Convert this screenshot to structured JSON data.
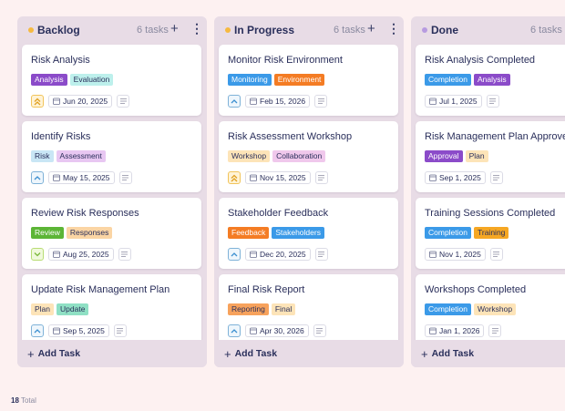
{
  "columns": [
    {
      "title": "Backlog",
      "count": "6 tasks",
      "dot_color": "#f6b940",
      "add_label": "Add Task",
      "cards": [
        {
          "title": "Risk Analysis",
          "tags": [
            {
              "label": "Analysis",
              "bg": "#8b4bc9",
              "fg": "#ffffff"
            },
            {
              "label": "Evaluation",
              "bg": "#bdf0ec",
              "fg": "#2a2f5b"
            }
          ],
          "priority": "high",
          "priority_icon": "double-chevron-up-icon",
          "date": "Jun 20, 2025"
        },
        {
          "title": "Identify Risks",
          "tags": [
            {
              "label": "Risk",
              "bg": "#c9e6f5",
              "fg": "#2a2f5b"
            },
            {
              "label": "Assessment",
              "bg": "#e8c7f2",
              "fg": "#2a2f5b"
            }
          ],
          "priority": "medium",
          "priority_icon": "chevron-up-icon",
          "date": "May 15, 2025"
        },
        {
          "title": "Review Risk Responses",
          "tags": [
            {
              "label": "Review",
              "bg": "#5cb536",
              "fg": "#ffffff"
            },
            {
              "label": "Responses",
              "bg": "#fbd5a4",
              "fg": "#2a2f5b"
            }
          ],
          "priority": "low",
          "priority_icon": "chevron-down-icon",
          "date": "Aug 25, 2025"
        },
        {
          "title": "Update Risk Management Plan",
          "tags": [
            {
              "label": "Plan",
              "bg": "#fde4b8",
              "fg": "#2a2f5b"
            },
            {
              "label": "Update",
              "bg": "#8fe0c4",
              "fg": "#2a2f5b"
            }
          ],
          "priority": "medium",
          "priority_icon": "chevron-up-icon",
          "date": "Sep 5, 2025"
        }
      ]
    },
    {
      "title": "In Progress",
      "count": "6 tasks",
      "dot_color": "#f6b940",
      "add_label": "Add Task",
      "cards": [
        {
          "title": "Monitor Risk Environment",
          "tags": [
            {
              "label": "Monitoring",
              "bg": "#3b9ae8",
              "fg": "#ffffff"
            },
            {
              "label": "Environment",
              "bg": "#f47c24",
              "fg": "#ffffff"
            }
          ],
          "priority": "medium",
          "priority_icon": "chevron-up-icon",
          "date": "Feb 15, 2026"
        },
        {
          "title": "Risk Assessment Workshop",
          "tags": [
            {
              "label": "Workshop",
              "bg": "#fde4b8",
              "fg": "#2a2f5b"
            },
            {
              "label": "Collaboration",
              "bg": "#f0c8ec",
              "fg": "#2a2f5b"
            }
          ],
          "priority": "high",
          "priority_icon": "double-chevron-up-icon",
          "date": "Nov 15, 2025"
        },
        {
          "title": "Stakeholder Feedback",
          "tags": [
            {
              "label": "Feedback",
              "bg": "#f47c24",
              "fg": "#ffffff"
            },
            {
              "label": "Stakeholders",
              "bg": "#3b9ae8",
              "fg": "#ffffff"
            }
          ],
          "priority": "medium",
          "priority_icon": "chevron-up-icon",
          "date": "Dec 20, 2025"
        },
        {
          "title": "Final Risk Report",
          "tags": [
            {
              "label": "Reporting",
              "bg": "#f7a25c",
              "fg": "#2a2f5b"
            },
            {
              "label": "Final",
              "bg": "#fde4b8",
              "fg": "#2a2f5b"
            }
          ],
          "priority": "medium",
          "priority_icon": "chevron-up-icon",
          "date": "Apr 30, 2026"
        }
      ]
    },
    {
      "title": "Done",
      "count": "6 tasks",
      "dot_color": "#b79be0",
      "add_label": "Add Task",
      "cards": [
        {
          "title": "Risk Analysis Completed",
          "tags": [
            {
              "label": "Completion",
              "bg": "#3b9ae8",
              "fg": "#ffffff"
            },
            {
              "label": "Analysis",
              "bg": "#8b4bc9",
              "fg": "#ffffff"
            }
          ],
          "priority": "none",
          "priority_icon": "",
          "date": "Jul 1, 2025"
        },
        {
          "title": "Risk Management Plan Approved",
          "tags": [
            {
              "label": "Approval",
              "bg": "#8b4bc9",
              "fg": "#ffffff"
            },
            {
              "label": "Plan",
              "bg": "#fde4b8",
              "fg": "#2a2f5b"
            }
          ],
          "priority": "none",
          "priority_icon": "",
          "date": "Sep 1, 2025"
        },
        {
          "title": "Training Sessions Completed",
          "tags": [
            {
              "label": "Completion",
              "bg": "#3b9ae8",
              "fg": "#ffffff"
            },
            {
              "label": "Training",
              "bg": "#f6a723",
              "fg": "#2a2f5b"
            }
          ],
          "priority": "none",
          "priority_icon": "",
          "date": "Nov 1, 2025"
        },
        {
          "title": "Workshops Completed",
          "tags": [
            {
              "label": "Completion",
              "bg": "#3b9ae8",
              "fg": "#ffffff"
            },
            {
              "label": "Workshop",
              "bg": "#fde4b8",
              "fg": "#2a2f5b"
            }
          ],
          "priority": "none",
          "priority_icon": "",
          "date": "Jan 1, 2026"
        }
      ]
    }
  ],
  "footer": {
    "count": "18",
    "label": "Total"
  },
  "icons": {
    "add": "plus-icon",
    "menu": "more-vertical-icon",
    "date": "calendar-icon",
    "notes": "notes-icon"
  }
}
